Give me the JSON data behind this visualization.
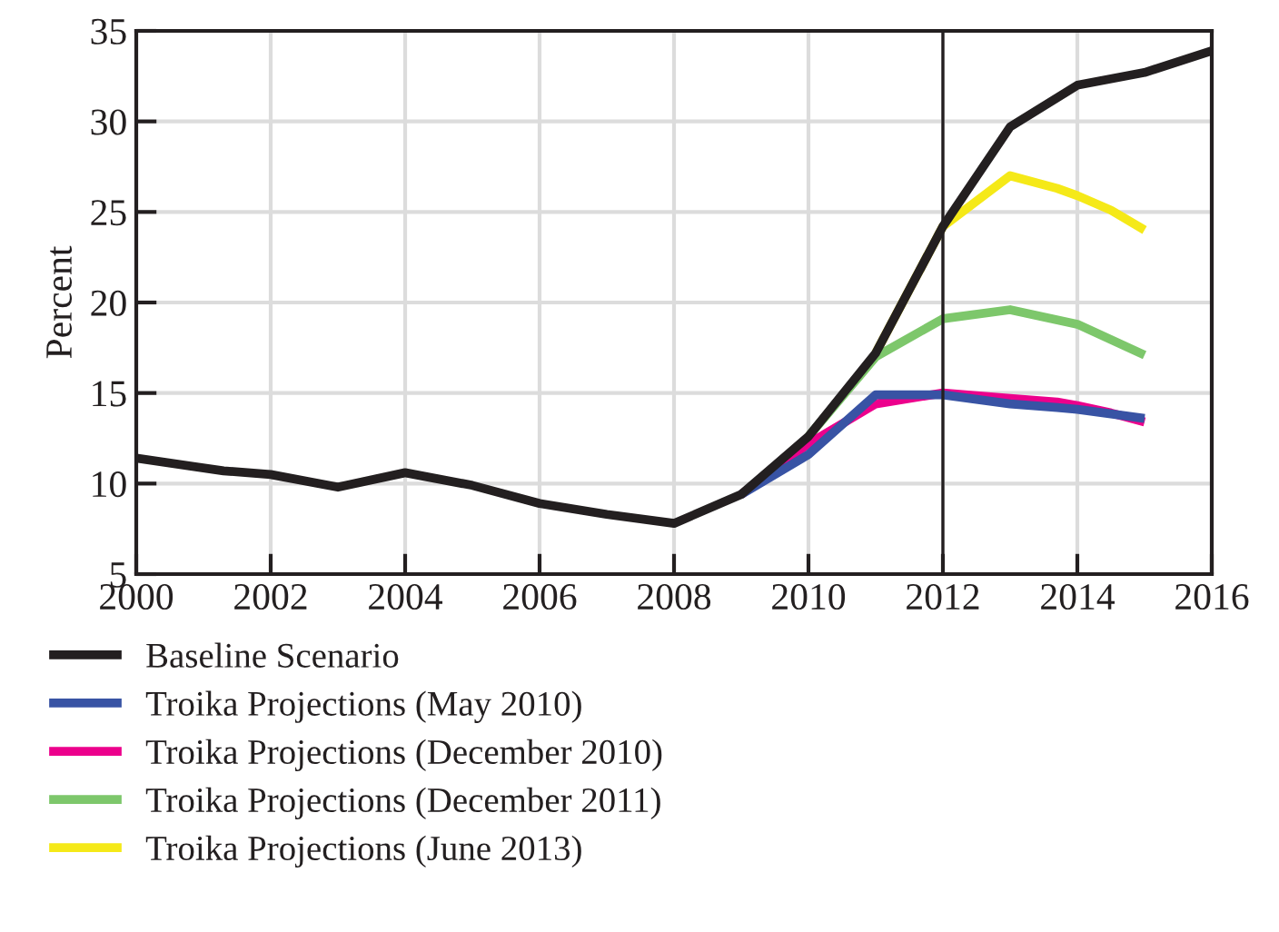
{
  "chart_data": {
    "type": "line",
    "ylabel": "Percent",
    "xlim": [
      2000,
      2016
    ],
    "xticks": [
      2000,
      2002,
      2004,
      2006,
      2008,
      2010,
      2012,
      2014,
      2016
    ],
    "ylim": [
      5,
      35
    ],
    "yticks": [
      5,
      10,
      15,
      20,
      25,
      30,
      35
    ],
    "grid": true,
    "legend": "bottom",
    "ref_lines": [
      {
        "axis": "x",
        "value": 2012,
        "color": "#231f20"
      }
    ],
    "series": [
      {
        "name": "Baseline Scenario",
        "color": "#231f20",
        "x": [
          2000,
          2001.3,
          2002,
          2003,
          2004,
          2005,
          2006,
          2007,
          2008,
          2009,
          2010,
          2011,
          2012,
          2013,
          2014,
          2015,
          2016
        ],
        "values": [
          11.4,
          10.7,
          10.5,
          9.8,
          10.6,
          9.9,
          8.9,
          8.3,
          7.8,
          9.4,
          12.6,
          17.2,
          24.2,
          29.7,
          32.0,
          32.7,
          33.9
        ]
      },
      {
        "name": "Troika Projections (May 2010)",
        "color": "#3853a4",
        "x": [
          2009,
          2010,
          2011,
          2012,
          2013,
          2013.7,
          2014,
          2015
        ],
        "values": [
          9.4,
          11.6,
          14.9,
          14.9,
          14.4,
          14.2,
          14.1,
          13.6
        ]
      },
      {
        "name": "Troika Projections (December 2010)",
        "color": "#ec008c",
        "x": [
          2009,
          2010,
          2011,
          2012,
          2013,
          2013.7,
          2014,
          2014.5,
          2015
        ],
        "values": [
          9.4,
          12.2,
          14.4,
          15.0,
          14.7,
          14.5,
          14.3,
          13.9,
          13.4
        ]
      },
      {
        "name": "Troika Projections (December 2011)",
        "color": "#7dc76b",
        "x": [
          2010,
          2011,
          2012,
          2013,
          2014,
          2015
        ],
        "values": [
          12.6,
          17.0,
          19.1,
          19.6,
          18.8,
          17.1
        ]
      },
      {
        "name": "Troika Projections (June 2013)",
        "color": "#f5e918",
        "x": [
          2011,
          2012,
          2013,
          2013.7,
          2014,
          2014.5,
          2015
        ],
        "values": [
          17.2,
          24.2,
          27.0,
          26.3,
          25.9,
          25.1,
          24.0
        ]
      }
    ]
  }
}
